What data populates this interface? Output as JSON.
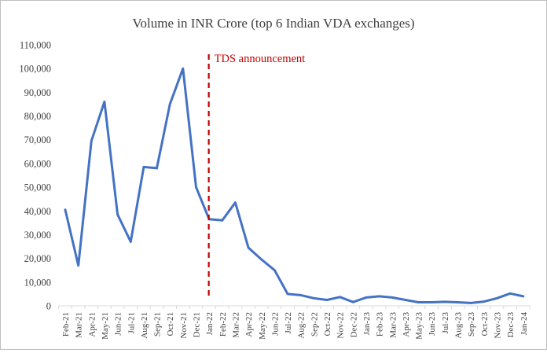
{
  "chart_data": {
    "type": "line",
    "title": "Volume in INR Crore (top 6 Indian VDA exchanges)",
    "xlabel": "",
    "ylabel": "",
    "ylim": [
      0,
      110000
    ],
    "yticks": [
      "0",
      "10,000",
      "20,000",
      "30,000",
      "40,000",
      "50,000",
      "60,000",
      "70,000",
      "80,000",
      "90,000",
      "100,000",
      "110,000"
    ],
    "grid": false,
    "legend": "none",
    "categories": [
      "Feb-21",
      "Mar-21",
      "Apr-21",
      "May-21",
      "Jun-21",
      "Jul-21",
      "Aug-21",
      "Sep-21",
      "Oct-21",
      "Nov-21",
      "Dec-21",
      "Jan-22",
      "Feb-22",
      "Mar-22",
      "Apr-22",
      "May-22",
      "Jun-22",
      "Jul-22",
      "Aug-22",
      "Sep-22",
      "Oct-22",
      "Nov-22",
      "Dec-22",
      "Jan-23",
      "Feb-23",
      "Mar-23",
      "Apr-23",
      "May-23",
      "Jun-23",
      "Jul-23",
      "Aug-23",
      "Sep-23",
      "Oct-23",
      "Nov-23",
      "Dec-23",
      "Jan-24"
    ],
    "series": [
      {
        "values": [
          40500,
          17000,
          69500,
          86000,
          38500,
          27000,
          58500,
          58000,
          85000,
          100000,
          50000,
          36500,
          36000,
          43500,
          24500,
          19500,
          15000,
          5000,
          4500,
          3200,
          2500,
          3700,
          1600,
          3500,
          4000,
          3500,
          2500,
          1500,
          1500,
          1700,
          1500,
          1200,
          1800,
          3200,
          5200,
          4000
        ],
        "color": "#4472c4"
      }
    ],
    "annotations": [
      {
        "text": "TDS announcement",
        "at_category": "Jan-22",
        "color": "#c00000",
        "style": "dashed-vertical-line"
      }
    ]
  }
}
